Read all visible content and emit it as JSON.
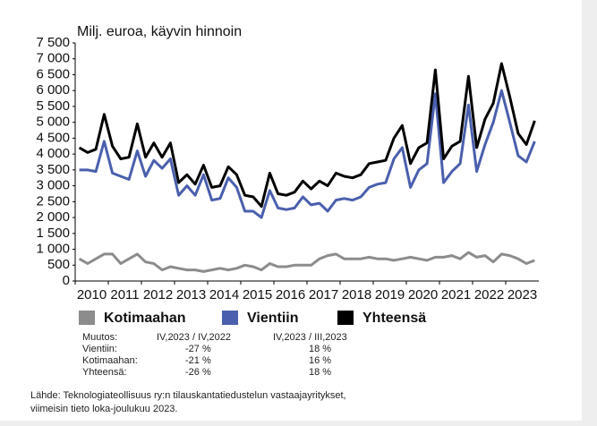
{
  "chart_data": {
    "type": "line",
    "ylabel": "Milj. euroa, käyvin hinnoin",
    "categories": [
      "2010",
      null,
      null,
      null,
      "2011",
      null,
      null,
      null,
      "2012",
      null,
      null,
      null,
      "2013",
      null,
      null,
      null,
      "2014",
      null,
      null,
      null,
      "2015",
      null,
      null,
      null,
      "2016",
      null,
      null,
      null,
      "2017",
      null,
      null,
      null,
      "2018",
      null,
      null,
      null,
      "2019",
      null,
      null,
      null,
      "2020",
      null,
      null,
      null,
      "2021",
      null,
      null,
      null,
      "2022",
      null,
      null,
      null,
      "2023",
      null,
      null,
      null
    ],
    "series": [
      {
        "name": "Kotimaahan",
        "color": "#8c8c8c",
        "values": [
          700,
          550,
          700,
          850,
          850,
          550,
          700,
          850,
          600,
          550,
          350,
          450,
          400,
          350,
          350,
          300,
          350,
          400,
          350,
          400,
          500,
          450,
          350,
          550,
          450,
          450,
          500,
          500,
          500,
          700,
          800,
          850,
          700,
          700,
          700,
          750,
          700,
          700,
          650,
          700,
          750,
          700,
          650,
          750,
          750,
          800,
          700,
          900,
          750,
          800,
          600,
          850,
          800,
          700,
          550,
          650
        ]
      },
      {
        "name": "Vientiin",
        "color": "#4a5fad",
        "values": [
          3500,
          3500,
          3450,
          4400,
          3400,
          3300,
          3200,
          4100,
          3300,
          3800,
          3550,
          3850,
          2700,
          3000,
          2700,
          3350,
          2550,
          2600,
          3250,
          2950,
          2200,
          2200,
          2000,
          2850,
          2300,
          2250,
          2300,
          2650,
          2400,
          2450,
          2200,
          2550,
          2600,
          2550,
          2650,
          2950,
          3050,
          3100,
          3850,
          4200,
          2950,
          3500,
          3700,
          5900,
          3100,
          3450,
          3700,
          5550,
          3450,
          4300,
          5000,
          6000,
          5000,
          3950,
          3750,
          4400
        ]
      },
      {
        "name": "Yhteensä",
        "color": "#000000",
        "values": [
          4200,
          4050,
          4150,
          5250,
          4250,
          3850,
          3900,
          4950,
          3900,
          4350,
          3900,
          4350,
          3100,
          3350,
          3050,
          3650,
          2950,
          3000,
          3600,
          3350,
          2700,
          2650,
          2350,
          3400,
          2750,
          2700,
          2800,
          3150,
          2900,
          3150,
          3000,
          3400,
          3300,
          3250,
          3350,
          3700,
          3750,
          3800,
          4500,
          4900,
          3700,
          4200,
          4350,
          6650,
          3850,
          4250,
          4400,
          6450,
          4200,
          5100,
          5600,
          6850,
          5800,
          4650,
          4300,
          5050
        ]
      }
    ],
    "ylim": [
      0,
      7500
    ],
    "yticks": [
      0,
      500,
      {
        "value": 1000,
        "label": "1 000"
      },
      {
        "value": 1500,
        "label": "1 500"
      },
      {
        "value": 2000,
        "label": "2 000"
      },
      {
        "value": 2500,
        "label": "2 500"
      },
      {
        "value": 3000,
        "label": "3 000"
      },
      {
        "value": 3500,
        "label": "3 500"
      },
      {
        "value": 4000,
        "label": "4 000"
      },
      {
        "value": 4500,
        "label": "4 500"
      },
      {
        "value": 5000,
        "label": "5 000"
      },
      {
        "value": 5500,
        "label": "5 500"
      },
      {
        "value": 6000,
        "label": "6 000"
      },
      {
        "value": 6500,
        "label": "6 500"
      },
      {
        "value": 7000,
        "label": "7 000"
      },
      {
        "value": 7500,
        "label": "7 500"
      }
    ]
  },
  "table": {
    "rows": [
      [
        "Muutos:",
        "IV,2023 / IV,2022",
        "IV,2023 / III,2023"
      ],
      [
        "Vientiin:",
        "-27 %",
        "18 %"
      ],
      [
        "Kotimaahan:",
        "-21 %",
        "16 %"
      ],
      [
        "Yhteensä:",
        "-26 %",
        "18 %"
      ]
    ]
  },
  "source": [
    "Lähde: Teknologiateollisuus ry:n tilauskantatiedustelun vastaajayritykset,",
    "viimeisin tieto loka-joulukuu 2023."
  ]
}
